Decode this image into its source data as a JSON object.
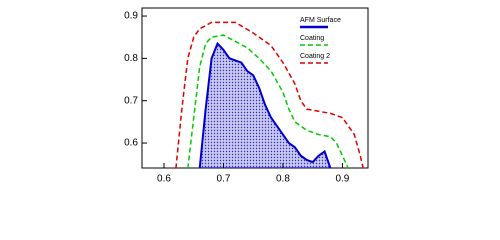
{
  "chart_data": {
    "type": "area-line",
    "xlim": [
      0.563,
      0.943
    ],
    "ylim": [
      0.541,
      0.919
    ],
    "xticks": [
      0.6,
      0.7,
      0.8,
      0.9
    ],
    "yticks": [
      0.6,
      0.7,
      0.8,
      0.9
    ],
    "legend": "upper right",
    "series": [
      {
        "name": "AFM Surface",
        "color": "#0000cc",
        "style": "filled",
        "x": [
          0.66,
          0.67,
          0.68,
          0.69,
          0.7,
          0.71,
          0.72,
          0.73,
          0.74,
          0.75,
          0.76,
          0.77,
          0.78,
          0.79,
          0.8,
          0.81,
          0.82,
          0.83,
          0.84,
          0.85,
          0.86,
          0.87,
          0.88
        ],
        "values": [
          0.54,
          0.68,
          0.8,
          0.835,
          0.82,
          0.8,
          0.795,
          0.79,
          0.77,
          0.76,
          0.73,
          0.69,
          0.66,
          0.64,
          0.62,
          0.6,
          0.59,
          0.57,
          0.56,
          0.555,
          0.57,
          0.58,
          0.54
        ]
      },
      {
        "name": "Coating",
        "color": "#00cc00",
        "style": "dashed",
        "x": [
          0.64,
          0.65,
          0.66,
          0.67,
          0.68,
          0.7,
          0.72,
          0.74,
          0.76,
          0.78,
          0.8,
          0.81,
          0.82,
          0.84,
          0.86,
          0.88,
          0.89,
          0.9,
          0.91
        ],
        "values": [
          0.54,
          0.66,
          0.78,
          0.835,
          0.85,
          0.855,
          0.84,
          0.825,
          0.8,
          0.77,
          0.72,
          0.68,
          0.65,
          0.63,
          0.62,
          0.615,
          0.6,
          0.57,
          0.54
        ]
      },
      {
        "name": "Coating 2",
        "color": "#dd0000",
        "style": "dashed",
        "x": [
          0.62,
          0.63,
          0.64,
          0.65,
          0.66,
          0.68,
          0.72,
          0.75,
          0.78,
          0.8,
          0.82,
          0.83,
          0.84,
          0.86,
          0.88,
          0.9,
          0.92,
          0.93,
          0.935
        ],
        "values": [
          0.54,
          0.68,
          0.8,
          0.85,
          0.87,
          0.885,
          0.885,
          0.86,
          0.83,
          0.79,
          0.74,
          0.7,
          0.68,
          0.675,
          0.67,
          0.66,
          0.62,
          0.57,
          0.54
        ]
      }
    ]
  }
}
